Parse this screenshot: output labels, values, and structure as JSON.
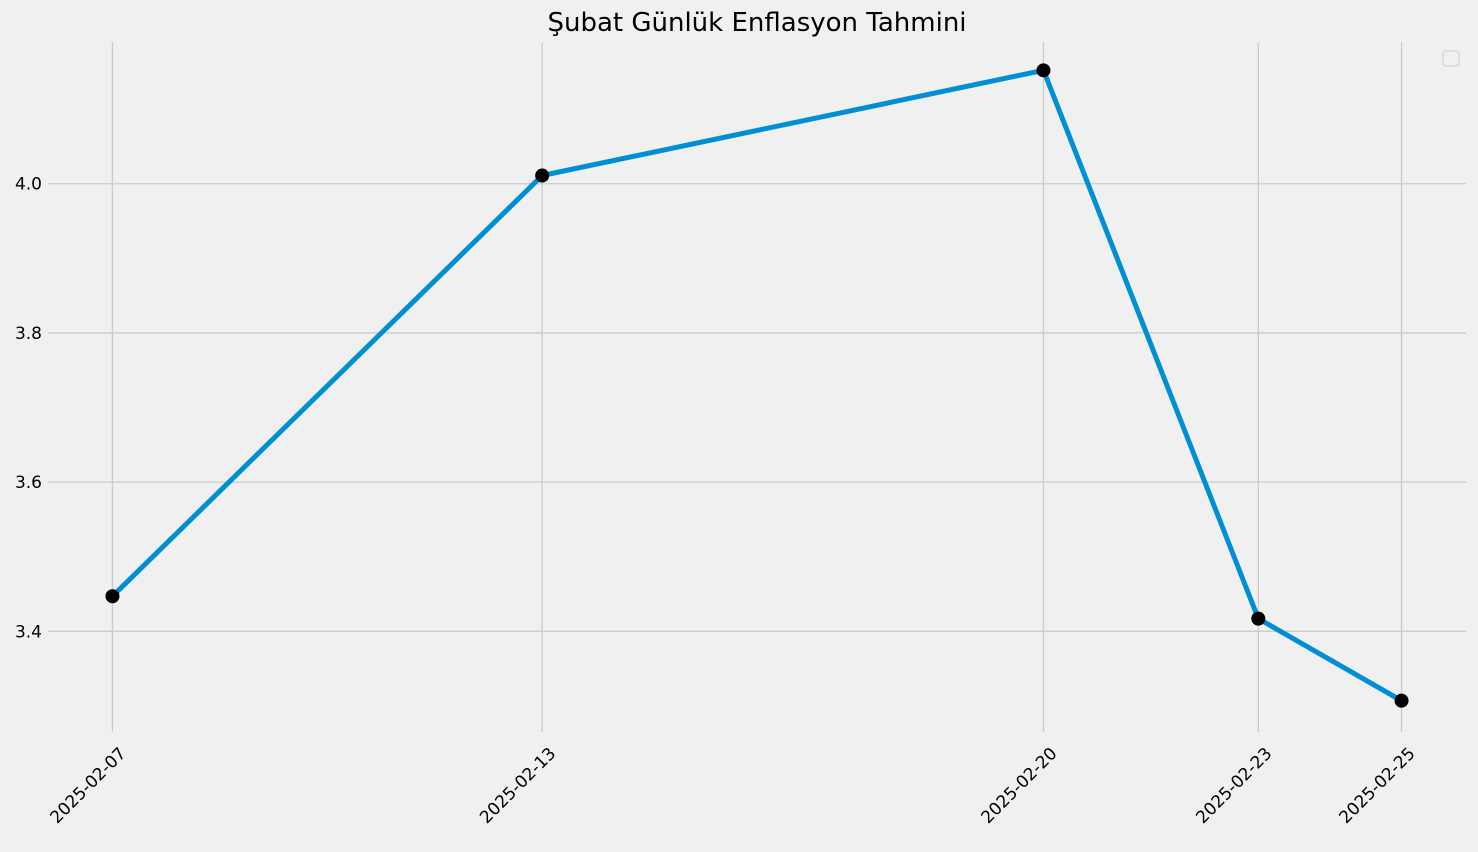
{
  "chart_data": {
    "type": "line",
    "title": "Şubat Günlük Enflasyon Tahmini",
    "xlabel": "",
    "ylabel": "",
    "x": [
      "2025-02-07",
      "2025-02-13",
      "2025-02-20",
      "2025-02-23",
      "2025-02-25"
    ],
    "series": [
      {
        "values": [
          3.447,
          4.011,
          4.152,
          3.417,
          3.307
        ],
        "color": "#008fd5",
        "marker_color": "#000000"
      }
    ],
    "yticks": [
      3.4,
      3.6,
      3.8,
      4.0
    ],
    "ytick_labels": [
      "3.4",
      "3.6",
      "3.8",
      "4.0"
    ],
    "ylim": [
      3.265,
      4.19
    ],
    "x_tick_rotation": 45,
    "grid": true,
    "legend": "top-right",
    "legend_entries": []
  }
}
